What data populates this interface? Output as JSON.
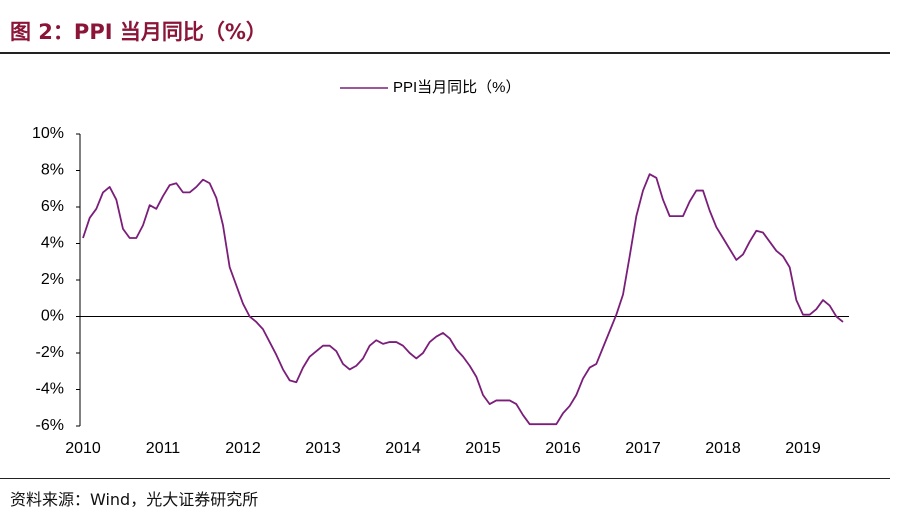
{
  "header": {
    "title": "图 2：PPI 当月同比（%）"
  },
  "chart_data": {
    "type": "line",
    "categories": [
      "2010",
      null,
      null,
      null,
      null,
      null,
      null,
      null,
      null,
      null,
      null,
      null,
      "2011",
      null,
      null,
      null,
      null,
      null,
      null,
      null,
      null,
      null,
      null,
      null,
      "2012",
      null,
      null,
      null,
      null,
      null,
      null,
      null,
      null,
      null,
      null,
      null,
      "2013",
      null,
      null,
      null,
      null,
      null,
      null,
      null,
      null,
      null,
      null,
      null,
      "2014",
      null,
      null,
      null,
      null,
      null,
      null,
      null,
      null,
      null,
      null,
      null,
      "2015",
      null,
      null,
      null,
      null,
      null,
      null,
      null,
      null,
      null,
      null,
      null,
      "2016",
      null,
      null,
      null,
      null,
      null,
      null,
      null,
      null,
      null,
      null,
      null,
      "2017",
      null,
      null,
      null,
      null,
      null,
      null,
      null,
      null,
      null,
      null,
      null,
      "2018",
      null,
      null,
      null,
      null,
      null,
      null,
      null,
      null,
      null,
      null,
      null,
      "2019",
      null,
      null,
      null,
      null,
      null,
      null
    ],
    "series": [
      {
        "name": "PPI当月同比（%）",
        "color": "#7b1e7a",
        "values": [
          4.3,
          5.4,
          5.9,
          6.8,
          7.1,
          6.4,
          4.8,
          4.3,
          4.3,
          5.0,
          6.1,
          5.9,
          6.6,
          7.2,
          7.3,
          6.8,
          6.8,
          7.1,
          7.5,
          7.3,
          6.5,
          5.0,
          2.7,
          1.7,
          0.7,
          0.0,
          -0.3,
          -0.7,
          -1.4,
          -2.1,
          -2.9,
          -3.5,
          -3.6,
          -2.8,
          -2.2,
          -1.9,
          -1.6,
          -1.6,
          -1.9,
          -2.6,
          -2.9,
          -2.7,
          -2.3,
          -1.6,
          -1.3,
          -1.5,
          -1.4,
          -1.4,
          -1.6,
          -2.0,
          -2.3,
          -2.0,
          -1.4,
          -1.1,
          -0.9,
          -1.2,
          -1.8,
          -2.2,
          -2.7,
          -3.3,
          -4.3,
          -4.8,
          -4.6,
          -4.6,
          -4.6,
          -4.8,
          -5.4,
          -5.9,
          -5.9,
          -5.9,
          -5.9,
          -5.9,
          -5.3,
          -4.9,
          -4.3,
          -3.4,
          -2.8,
          -2.6,
          -1.7,
          -0.8,
          0.1,
          1.2,
          3.3,
          5.5,
          6.9,
          7.8,
          7.6,
          6.4,
          5.5,
          5.5,
          5.5,
          6.3,
          6.9,
          6.9,
          5.8,
          4.9,
          4.3,
          3.7,
          3.1,
          3.4,
          4.1,
          4.7,
          4.6,
          4.1,
          3.6,
          3.3,
          2.7,
          0.9,
          0.1,
          0.1,
          0.4,
          0.9,
          0.6,
          0.0,
          -0.3
        ]
      }
    ],
    "ylim": [
      -6,
      10
    ],
    "yticks": [
      {
        "value": -6,
        "label": "-6%"
      },
      {
        "value": -4,
        "label": "-4%"
      },
      {
        "value": -2,
        "label": "-2%"
      },
      {
        "value": 0,
        "label": "0%"
      },
      {
        "value": 2,
        "label": "2%"
      },
      {
        "value": 4,
        "label": "4%"
      },
      {
        "value": 6,
        "label": "6%"
      },
      {
        "value": 8,
        "label": "8%"
      },
      {
        "value": 10,
        "label": "10%"
      }
    ]
  },
  "footer": {
    "source": "资料来源：Wind，光大证券研究所"
  }
}
